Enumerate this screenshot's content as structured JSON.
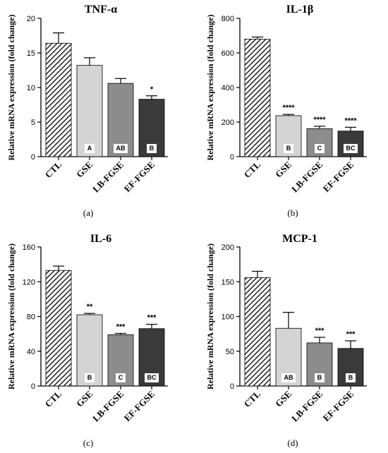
{
  "chart_data": [
    {
      "type": "bar",
      "panel_label": "(a)",
      "title": "TNF-α",
      "ylabel": "Relative mRNA expression (fold change)",
      "categories": [
        "CTL",
        "GSE",
        "LB-FGSE",
        "EF-FGSE"
      ],
      "values": [
        16.4,
        13.2,
        10.6,
        8.3
      ],
      "errors": [
        1.5,
        1.1,
        0.7,
        0.5
      ],
      "significance": [
        "",
        "",
        "",
        "*"
      ],
      "letters": [
        "",
        "A",
        "AB",
        "B"
      ],
      "ylim": [
        0,
        20
      ],
      "yticks": [
        0,
        5,
        10,
        15,
        20
      ],
      "ytick_labels": [
        "0",
        "5",
        "10",
        "15",
        "20"
      ],
      "fills": [
        "hatch",
        "#d4d4d4",
        "#8c8c8c",
        "#3a3a3a"
      ]
    },
    {
      "type": "bar",
      "panel_label": "(b)",
      "title": "IL-1β",
      "ylabel": "Relative mRNA expression (fold change)",
      "categories": [
        "CTL",
        "GSE",
        "LB-FGSE",
        "EF-FGSE"
      ],
      "values": [
        680,
        237,
        162,
        148
      ],
      "errors": [
        12,
        7,
        14,
        22
      ],
      "significance": [
        "",
        "****",
        "****",
        "****"
      ],
      "letters": [
        "",
        "B",
        "C",
        "BC"
      ],
      "ylim": [
        0,
        800
      ],
      "yticks": [
        0,
        200,
        400,
        600,
        800
      ],
      "ytick_labels": [
        "0",
        "200",
        "400",
        "600",
        "800"
      ],
      "fills": [
        "hatch",
        "#d4d4d4",
        "#8c8c8c",
        "#3a3a3a"
      ]
    },
    {
      "type": "bar",
      "panel_label": "(c)",
      "title": "IL-6",
      "ylabel": "Relative mRNA expression (fold change)",
      "categories": [
        "CTL",
        "GSE",
        "LB-FGSE",
        "EF-FGSE"
      ],
      "values": [
        133,
        82,
        59,
        66
      ],
      "errors": [
        5,
        1.5,
        1.5,
        5
      ],
      "significance": [
        "",
        "**",
        "***",
        "***"
      ],
      "letters": [
        "",
        "B",
        "C",
        "BC"
      ],
      "ylim": [
        0,
        160
      ],
      "yticks": [
        0,
        40,
        80,
        120,
        160
      ],
      "ytick_labels": [
        "0",
        "40",
        "80",
        "120",
        "160"
      ],
      "fills": [
        "hatch",
        "#d4d4d4",
        "#8c8c8c",
        "#3a3a3a"
      ]
    },
    {
      "type": "bar",
      "panel_label": "(d)",
      "title": "MCP-1",
      "ylabel": "Relative mRNA expression (fold change)",
      "categories": [
        "CTL",
        "GSE",
        "LB-FGSE",
        "EF-FGSE"
      ],
      "values": [
        156,
        83,
        62,
        54
      ],
      "errors": [
        9,
        23,
        8,
        11
      ],
      "significance": [
        "",
        "",
        "***",
        "***"
      ],
      "letters": [
        "",
        "AB",
        "B",
        "B"
      ],
      "ylim": [
        0,
        200
      ],
      "yticks": [
        0,
        50,
        100,
        150,
        200
      ],
      "ytick_labels": [
        "0",
        "50",
        "100",
        "150",
        "200"
      ],
      "fills": [
        "hatch",
        "#d4d4d4",
        "#8c8c8c",
        "#3a3a3a"
      ]
    }
  ]
}
